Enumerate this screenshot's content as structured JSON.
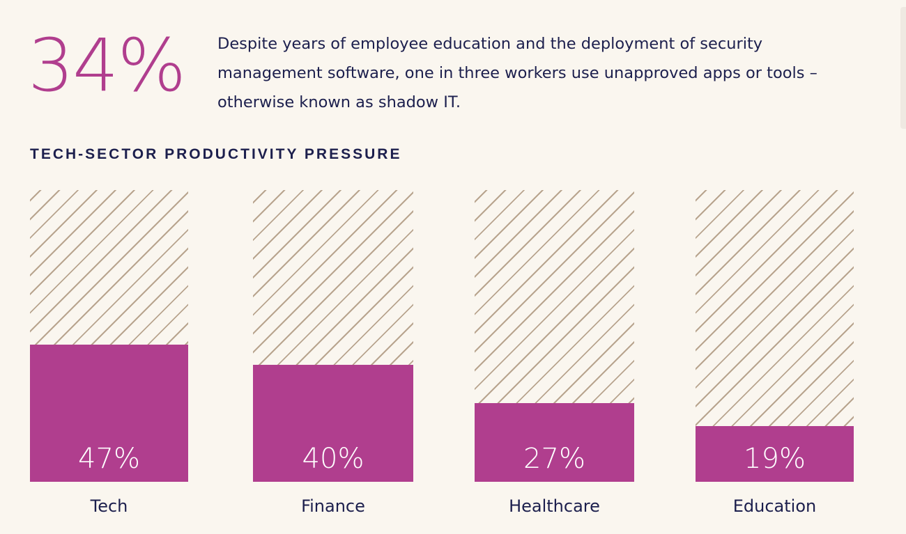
{
  "headline": {
    "stat": "34%",
    "description": "Despite years of employee education and the deployment of security management software, one in three workers use unapproved apps or tools – otherwise known as shadow IT."
  },
  "chart_data": {
    "type": "bar",
    "title": "TECH-SECTOR PRODUCTIVITY PRESSURE",
    "categories": [
      "Tech",
      "Finance",
      "Healthcare",
      "Education"
    ],
    "values": [
      47,
      40,
      27,
      19
    ],
    "labels": [
      "47%",
      "40%",
      "27%",
      "19%"
    ],
    "ylim": [
      0,
      100
    ],
    "unit": "%",
    "grid": false,
    "colors": {
      "bar": "#b03e8e",
      "hatch": "#b8a48e",
      "background": "#faf6ef",
      "text": "#1c1f4d"
    }
  }
}
